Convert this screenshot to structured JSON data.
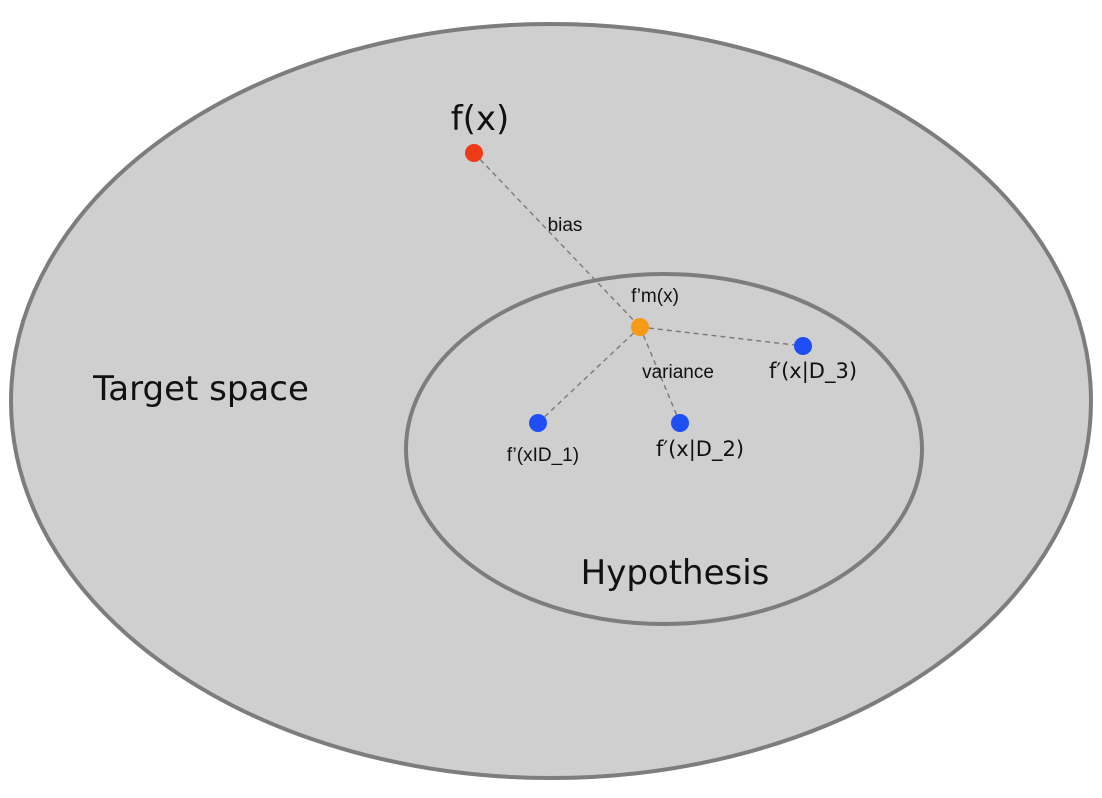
{
  "regions": {
    "target_space": {
      "label": "Target space"
    },
    "hypothesis": {
      "label": "Hypothesis"
    }
  },
  "points": {
    "true_function": {
      "label": "f(x)",
      "color": "#ee3a16"
    },
    "mean_model": {
      "label": "f’m(x)",
      "color": "#f59a14"
    },
    "model_d1": {
      "label": "f’(xID_1)",
      "color": "#1f4ef5"
    },
    "model_d2": {
      "label": "f′(x|D_2)",
      "color": "#1f4ef5"
    },
    "model_d3": {
      "label": "f′(x|D_3)",
      "color": "#1f4ef5"
    }
  },
  "connectors": {
    "bias": {
      "label": "bias"
    },
    "variance": {
      "label": "variance"
    }
  }
}
